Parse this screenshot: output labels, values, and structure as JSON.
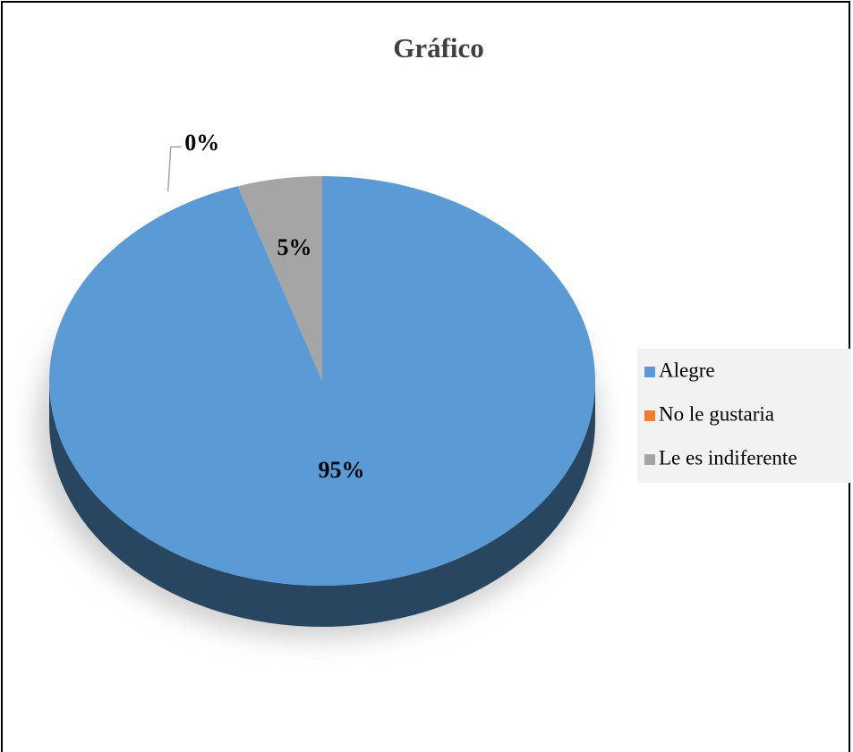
{
  "chart_data": {
    "type": "pie",
    "title": "Gráfico",
    "categories": [
      "Alegre",
      "No le gustaria",
      "Le es indiferente"
    ],
    "values": [
      95,
      0,
      5
    ],
    "value_labels": [
      "95%",
      "0%",
      "5%"
    ],
    "colors": [
      "#5b9bd5",
      "#ed7d31",
      "#a5a5a5"
    ],
    "legend": "right"
  }
}
